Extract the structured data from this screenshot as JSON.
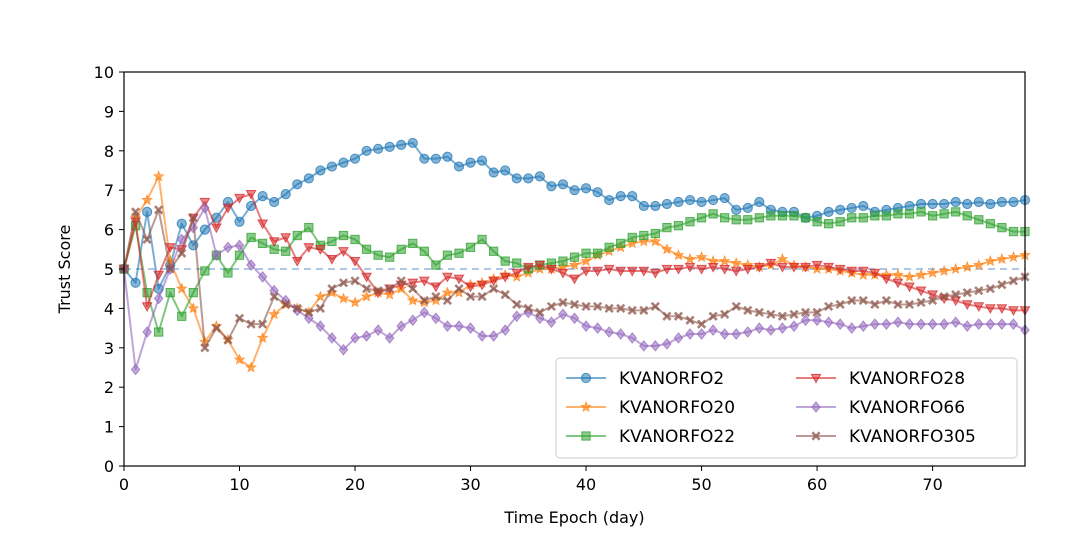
{
  "chart_data": {
    "type": "line",
    "title": "",
    "xlabel": "Time Epoch (day)",
    "ylabel": "Trust Score",
    "xlim": [
      0,
      78
    ],
    "ylim": [
      0,
      10
    ],
    "xticks": [
      "0",
      "10",
      "20",
      "30",
      "40",
      "50",
      "60",
      "70"
    ],
    "yticks": [
      "0",
      "1",
      "2",
      "3",
      "4",
      "5",
      "6",
      "7",
      "8",
      "9",
      "10"
    ],
    "grid": false,
    "legend_position": "lower-right",
    "legend_columns": 2,
    "reference_line": {
      "y": 5,
      "color": "#aec7e8",
      "style": "dashed"
    },
    "x": [
      0,
      1,
      2,
      3,
      4,
      5,
      6,
      7,
      8,
      9,
      10,
      11,
      12,
      13,
      14,
      15,
      16,
      17,
      18,
      19,
      20,
      21,
      22,
      23,
      24,
      25,
      26,
      27,
      28,
      29,
      30,
      31,
      32,
      33,
      34,
      35,
      36,
      37,
      38,
      39,
      40,
      41,
      42,
      43,
      44,
      45,
      46,
      47,
      48,
      49,
      50,
      51,
      52,
      53,
      54,
      55,
      56,
      57,
      58,
      59,
      60,
      61,
      62,
      63,
      64,
      65,
      66,
      67,
      68,
      69,
      70,
      71,
      72,
      73,
      74,
      75,
      76,
      77,
      78
    ],
    "series": [
      {
        "name": "KVANORFO2",
        "color": "#1f77b4",
        "marker": "circle",
        "values": [
          5.0,
          4.65,
          6.45,
          4.5,
          5.1,
          6.15,
          5.6,
          6.0,
          6.3,
          6.7,
          6.2,
          6.6,
          6.85,
          6.7,
          6.9,
          7.15,
          7.3,
          7.5,
          7.6,
          7.7,
          7.8,
          8.0,
          8.05,
          8.1,
          8.15,
          8.2,
          7.8,
          7.8,
          7.85,
          7.6,
          7.7,
          7.75,
          7.45,
          7.5,
          7.3,
          7.3,
          7.35,
          7.1,
          7.15,
          7.0,
          7.05,
          6.95,
          6.75,
          6.85,
          6.85,
          6.6,
          6.6,
          6.65,
          6.7,
          6.75,
          6.7,
          6.75,
          6.8,
          6.5,
          6.55,
          6.7,
          6.5,
          6.45,
          6.45,
          6.3,
          6.35,
          6.45,
          6.5,
          6.55,
          6.6,
          6.45,
          6.5,
          6.55,
          6.6,
          6.65,
          6.65,
          6.65,
          6.7,
          6.65,
          6.7,
          6.65,
          6.7,
          6.7,
          6.75
        ]
      },
      {
        "name": "KVANORFO20",
        "color": "#ff7f0e",
        "marker": "star",
        "values": [
          5.0,
          6.3,
          6.75,
          7.35,
          5.2,
          4.5,
          4.0,
          3.15,
          3.55,
          3.2,
          2.7,
          2.5,
          3.25,
          3.85,
          4.1,
          4.0,
          3.9,
          4.3,
          4.4,
          4.25,
          4.15,
          4.3,
          4.4,
          4.35,
          4.5,
          4.2,
          4.15,
          4.2,
          4.4,
          4.4,
          4.6,
          4.65,
          4.75,
          4.85,
          4.8,
          4.9,
          5.0,
          5.0,
          5.05,
          5.1,
          5.2,
          5.35,
          5.45,
          5.55,
          5.65,
          5.7,
          5.7,
          5.5,
          5.35,
          5.25,
          5.3,
          5.2,
          5.2,
          5.15,
          5.1,
          5.05,
          5.1,
          5.25,
          5.1,
          5.05,
          5.0,
          5.0,
          4.95,
          4.9,
          4.85,
          4.85,
          4.85,
          4.85,
          4.8,
          4.85,
          4.9,
          4.95,
          5.0,
          5.05,
          5.1,
          5.2,
          5.25,
          5.3,
          5.35
        ]
      },
      {
        "name": "KVANORFO22",
        "color": "#2ca02c",
        "marker": "square",
        "values": [
          5.0,
          6.1,
          4.4,
          3.4,
          4.4,
          3.8,
          4.4,
          4.95,
          5.35,
          4.9,
          5.35,
          5.8,
          5.65,
          5.5,
          5.45,
          5.85,
          6.05,
          5.6,
          5.7,
          5.85,
          5.75,
          5.5,
          5.35,
          5.3,
          5.5,
          5.65,
          5.45,
          5.1,
          5.35,
          5.4,
          5.55,
          5.75,
          5.45,
          5.2,
          5.15,
          5.0,
          5.1,
          5.15,
          5.2,
          5.3,
          5.4,
          5.4,
          5.55,
          5.65,
          5.8,
          5.85,
          5.9,
          6.05,
          6.1,
          6.2,
          6.3,
          6.4,
          6.3,
          6.25,
          6.25,
          6.3,
          6.35,
          6.35,
          6.35,
          6.3,
          6.2,
          6.15,
          6.2,
          6.3,
          6.3,
          6.35,
          6.35,
          6.4,
          6.4,
          6.45,
          6.35,
          6.4,
          6.45,
          6.35,
          6.25,
          6.15,
          6.05,
          5.95,
          5.95
        ]
      },
      {
        "name": "KVANORFO28",
        "color": "#d62728",
        "marker": "triangle-down",
        "values": [
          5.0,
          6.2,
          4.05,
          4.85,
          5.55,
          5.5,
          6.3,
          6.7,
          6.05,
          6.55,
          6.8,
          6.9,
          6.15,
          5.7,
          5.8,
          5.2,
          5.55,
          5.5,
          5.25,
          5.45,
          5.2,
          4.8,
          4.4,
          4.5,
          4.6,
          4.65,
          4.7,
          4.55,
          4.8,
          4.75,
          4.55,
          4.6,
          4.7,
          4.8,
          4.9,
          5.05,
          5.1,
          5.0,
          4.9,
          4.75,
          4.95,
          4.95,
          5.0,
          4.95,
          4.95,
          4.95,
          4.9,
          5.0,
          5.0,
          5.05,
          5.0,
          5.05,
          5.0,
          4.95,
          5.0,
          5.05,
          5.15,
          5.05,
          5.05,
          5.05,
          5.1,
          5.05,
          5.0,
          4.95,
          4.95,
          4.9,
          4.75,
          4.65,
          4.55,
          4.45,
          4.35,
          4.25,
          4.2,
          4.1,
          4.05,
          4.0,
          4.0,
          3.95,
          3.95
        ]
      },
      {
        "name": "KVANORFO66",
        "color": "#9467bd",
        "marker": "diamond",
        "values": [
          5.0,
          2.45,
          3.4,
          4.25,
          5.0,
          5.75,
          6.05,
          6.55,
          5.35,
          5.55,
          5.6,
          5.1,
          4.8,
          4.45,
          4.2,
          3.95,
          3.75,
          3.55,
          3.25,
          2.95,
          3.25,
          3.3,
          3.45,
          3.25,
          3.55,
          3.7,
          3.9,
          3.75,
          3.55,
          3.55,
          3.5,
          3.3,
          3.3,
          3.45,
          3.8,
          3.9,
          3.75,
          3.65,
          3.85,
          3.75,
          3.55,
          3.5,
          3.4,
          3.35,
          3.25,
          3.05,
          3.05,
          3.1,
          3.25,
          3.35,
          3.35,
          3.45,
          3.35,
          3.35,
          3.4,
          3.5,
          3.45,
          3.5,
          3.55,
          3.7,
          3.7,
          3.65,
          3.6,
          3.5,
          3.55,
          3.6,
          3.6,
          3.65,
          3.6,
          3.6,
          3.6,
          3.6,
          3.65,
          3.55,
          3.6,
          3.6,
          3.6,
          3.6,
          3.45
        ]
      },
      {
        "name": "KVANORFO305",
        "color": "#8c564b",
        "marker": "x",
        "values": [
          5.0,
          6.45,
          5.75,
          6.5,
          5.0,
          5.4,
          6.3,
          3.0,
          3.5,
          3.2,
          3.75,
          3.6,
          3.6,
          4.3,
          4.1,
          4.0,
          3.9,
          4.0,
          4.5,
          4.65,
          4.7,
          4.5,
          4.45,
          4.5,
          4.7,
          4.5,
          4.2,
          4.3,
          4.2,
          4.5,
          4.3,
          4.3,
          4.5,
          4.35,
          4.1,
          4.0,
          3.9,
          4.05,
          4.15,
          4.1,
          4.05,
          4.05,
          4.0,
          4.0,
          3.95,
          3.95,
          4.05,
          3.8,
          3.8,
          3.7,
          3.6,
          3.8,
          3.85,
          4.05,
          3.95,
          3.9,
          3.85,
          3.8,
          3.85,
          3.9,
          3.9,
          4.05,
          4.1,
          4.2,
          4.2,
          4.1,
          4.2,
          4.1,
          4.1,
          4.15,
          4.2,
          4.3,
          4.35,
          4.4,
          4.45,
          4.5,
          4.6,
          4.7,
          4.8
        ]
      }
    ]
  }
}
